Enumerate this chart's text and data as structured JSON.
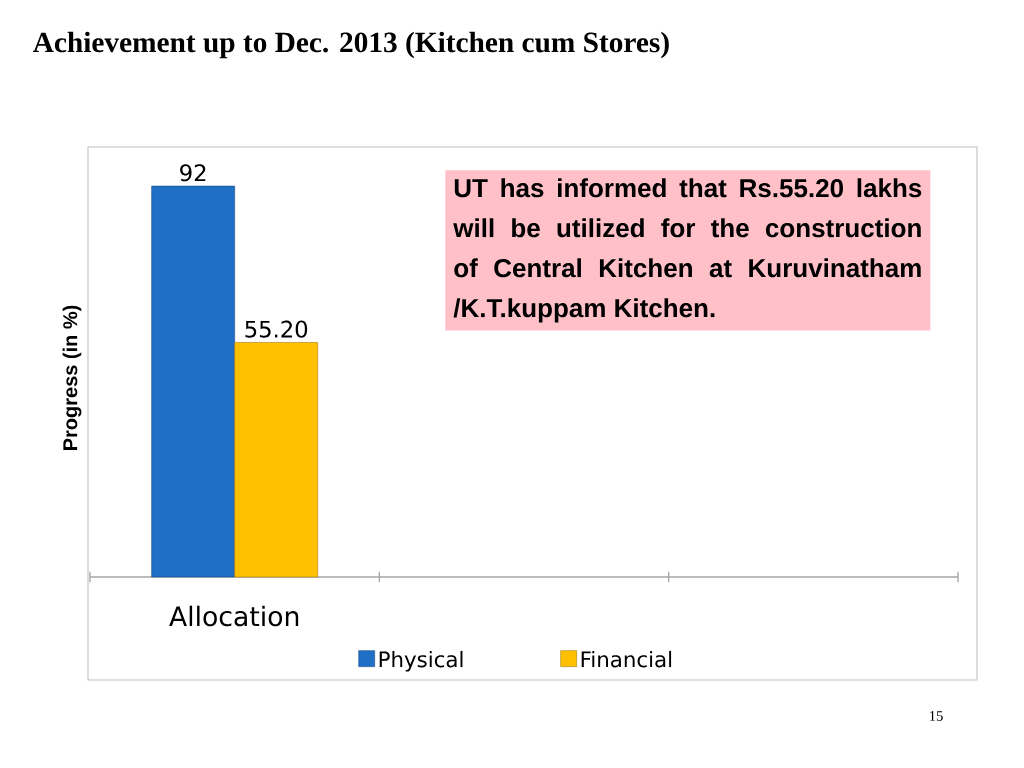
{
  "chart_data": {
    "type": "bar",
    "title": "Achievement up to Dec. 2013 (Kitchen cum Stores)",
    "ylabel": "Progress (in %)",
    "categories": [
      "Allocation"
    ],
    "legend": "bottom",
    "series": [
      {
        "name": "Physical",
        "color": "#1f6fc6",
        "values": [
          92
        ],
        "value_labels": [
          "92"
        ]
      },
      {
        "name": "Financial",
        "color": "#ffc000",
        "values": [
          55.2
        ],
        "value_labels": [
          "55.20"
        ]
      }
    ],
    "annotations": [
      "UT has informed that Rs.55.20 lakhs will be utilized for the construction of Central Kitchen at Kuruvinatham /K.T.kuppam Kitchen.",
      "15"
    ]
  }
}
